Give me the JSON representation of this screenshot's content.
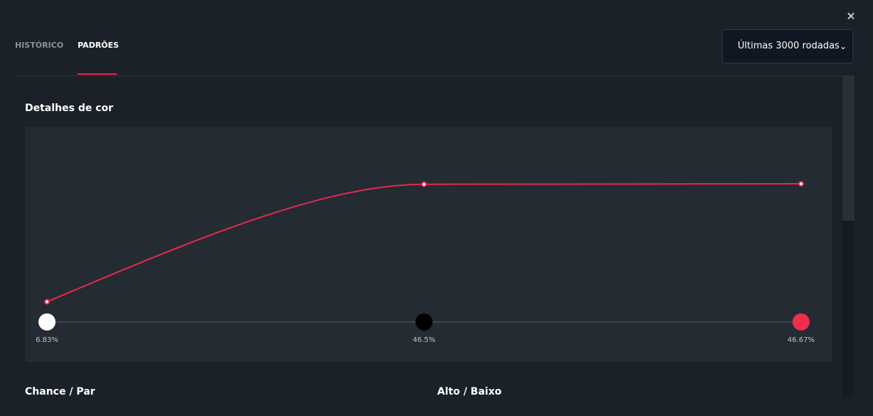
{
  "tabs": [
    "HISTÓRICO",
    "PADRÕES"
  ],
  "select_label": "Últimas 3000 rodadas",
  "close": "×",
  "section_title": "Detalhes de cor",
  "chart_data": {
    "type": "line",
    "categories": [
      null,
      null,
      null
    ],
    "values": [
      6.83,
      46.5,
      46.67
    ],
    "value_labels": [
      "6.83%",
      "46.5%",
      "46.67%"
    ],
    "color": "#e8294a",
    "marker_colors": [
      "#ffffff",
      "#000000",
      "#f12c4c"
    ]
  },
  "sections": [
    "Chance / Par",
    "Alto / Baixo"
  ]
}
